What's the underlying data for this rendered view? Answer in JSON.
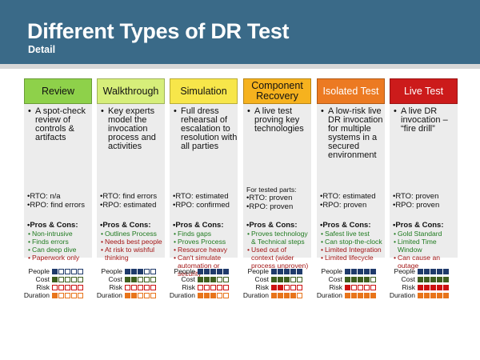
{
  "slide": {
    "title": "Different Types of DR Test",
    "subtitle": "Detail"
  },
  "rating_labels": [
    "People",
    "Cost",
    "Risk",
    "Duration"
  ],
  "rating_colors": {
    "People": "#1f3a6b",
    "Cost": "#3f5f1f",
    "Risk": "#cc1111",
    "Duration": "#e8741a"
  },
  "columns": [
    {
      "header": "Review",
      "header_bg": "#8ed14a",
      "header_fg": "#111111",
      "desc": "A spot-check review of controls & artifacts",
      "note": "",
      "rto": "RTO: n/a",
      "rpo": "RPO: find errors",
      "pros_cons_title": "Pros & Cons:",
      "pros": [
        "Non-intrusive",
        "Finds errors",
        "Can deep dive"
      ],
      "cons": [
        "Paperwork only"
      ],
      "ratings": {
        "People": 1,
        "Cost": 1,
        "Risk": 0,
        "Duration": 1
      }
    },
    {
      "header": "Walkthrough",
      "header_bg": "#d6ee7a",
      "header_fg": "#111111",
      "desc": "Key experts model the invocation process and activities",
      "note": "",
      "rto": "RTO: find errors",
      "rpo": "RPO: estimated",
      "pros_cons_title": "Pros & Cons:",
      "pros": [
        "Outlines Process"
      ],
      "cons": [
        "Needs best people",
        "At risk to wishful thinking"
      ],
      "ratings": {
        "People": 3,
        "Cost": 2,
        "Risk": 0,
        "Duration": 2
      }
    },
    {
      "header": "Simulation",
      "header_bg": "#f7e64a",
      "header_fg": "#111111",
      "desc": "Full dress rehearsal of escalation to resolution with all parties",
      "note": "",
      "rto": "RTO: estimated",
      "rpo": "RPO: confirmed",
      "pros_cons_title": "Pros & Cons:",
      "pros": [
        "Finds gaps",
        "Proves Process"
      ],
      "cons": [
        "Resource heavy",
        "Can't simulate automation or security"
      ],
      "ratings": {
        "People": 5,
        "Cost": 3,
        "Risk": 0,
        "Duration": 3
      }
    },
    {
      "header": "Component Recovery",
      "header_bg": "#f6b21e",
      "header_fg": "#111111",
      "desc": "A live test proving key technologies",
      "note": "For tested parts:",
      "rto": "RTO: proven",
      "rpo": "RPO: proven",
      "pros_cons_title": "Pros & Cons:",
      "pros": [
        "Proves technology & Technical steps"
      ],
      "cons": [
        "Used out of context (wider process unproven)"
      ],
      "ratings": {
        "People": 5,
        "Cost": 3,
        "Risk": 2,
        "Duration": 4
      }
    },
    {
      "header": "Isolated Test",
      "header_bg": "#ec7a22",
      "header_fg": "#ffffff",
      "desc": "A low-risk live DR invocation for multiple systems in a secured environment",
      "note": "",
      "rto": "RTO: estimated",
      "rpo": "RPO: proven",
      "pros_cons_title": "Pros & Cons:",
      "pros": [
        "Safest live test",
        "Can stop-the-clock"
      ],
      "cons": [
        "Limited Integration",
        "Limited lifecycle"
      ],
      "ratings": {
        "People": 5,
        "Cost": 4,
        "Risk": 1,
        "Duration": 5
      }
    },
    {
      "header": "Live Test",
      "header_bg": "#cc1b1b",
      "header_fg": "#ffffff",
      "desc": "A live DR invocation – “fire drill”",
      "note": "",
      "rto": "RTO: proven",
      "rpo": "RPO: proven",
      "pros_cons_title": "Pros & Cons:",
      "pros": [
        "Gold Standard",
        "Limited Time Window"
      ],
      "cons": [
        "Can cause an outage"
      ],
      "ratings": {
        "People": 5,
        "Cost": 5,
        "Risk": 5,
        "Duration": 5
      }
    }
  ]
}
